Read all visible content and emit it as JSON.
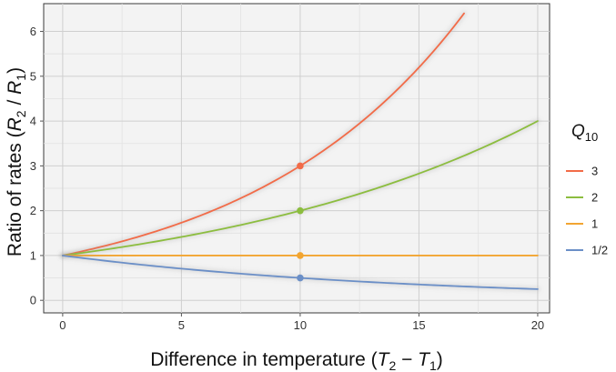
{
  "chart_data": {
    "type": "line",
    "xlabel": {
      "prefix": "Difference in temperature (",
      "var_a": "T",
      "sub_a": "2",
      "operator": " − ",
      "var_b": "T",
      "sub_b": "1",
      "suffix": ")"
    },
    "ylabel": {
      "prefix": "Ratio of rates (",
      "var_a": "R",
      "sub_a": "2",
      "operator": " / ",
      "var_b": "R",
      "sub_b": "1",
      "suffix": ")"
    },
    "legend": {
      "title_var": "Q",
      "title_sub": "10",
      "position": "right"
    },
    "xlim": [
      -0.8,
      20.5
    ],
    "ylim": [
      -0.28,
      6.62
    ],
    "xticks": [
      0,
      5,
      10,
      15,
      20
    ],
    "yticks": [
      0,
      1,
      2,
      3,
      4,
      5,
      6
    ],
    "grid": true,
    "series": [
      {
        "name": "3",
        "q10": 3,
        "color": "#f26b48",
        "x_range": [
          0,
          16.9
        ],
        "marker": {
          "x": 10,
          "y": 3
        }
      },
      {
        "name": "2",
        "q10": 2,
        "color": "#8cbd3f",
        "x_range": [
          0,
          20
        ],
        "marker": {
          "x": 10,
          "y": 2
        }
      },
      {
        "name": "1",
        "q10": 1,
        "color": "#f2a531",
        "x_range": [
          0,
          20
        ],
        "marker": {
          "x": 10,
          "y": 1
        }
      },
      {
        "name": "1/2",
        "q10": 0.5,
        "color": "#6b8fc7",
        "x_range": [
          0,
          20
        ],
        "marker": {
          "x": 10,
          "y": 0.5
        }
      }
    ]
  }
}
